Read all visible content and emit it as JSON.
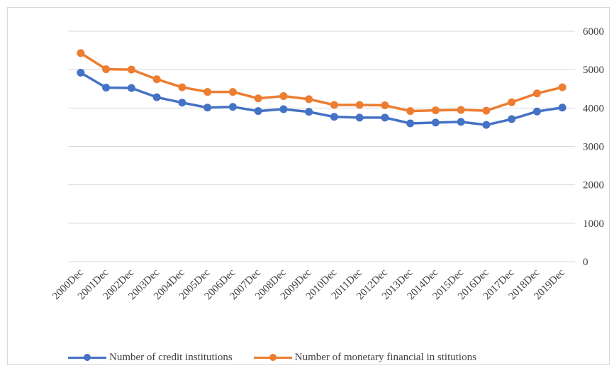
{
  "chart_data": {
    "type": "line",
    "title": "",
    "xlabel": "",
    "ylabel": "",
    "categories": [
      "2000Dec",
      "2001Dec",
      "2002Dec",
      "2003Dec",
      "2004Dec",
      "2005Dec",
      "2006Dec",
      "2007Dec",
      "2008Dec",
      "2009Dec",
      "2010Dec",
      "2011Dec",
      "2012Dec",
      "2013Dec",
      "2014Dec",
      "2015Dec",
      "2016Dec",
      "2017Dec",
      "2018Dec",
      "2019Dec"
    ],
    "y_tick_labels": [
      "0",
      "1000",
      "2000",
      "3000",
      "4000",
      "5000",
      "6000"
    ],
    "ylim": [
      0,
      6000
    ],
    "grid": true,
    "legend_position": "bottom",
    "series": [
      {
        "name": "Number of credit institutions",
        "color": "#4472c4",
        "values": [
          4920,
          4530,
          4520,
          4280,
          4140,
          4010,
          4030,
          3920,
          3970,
          3900,
          3770,
          3750,
          3750,
          3600,
          3620,
          3640,
          3560,
          3710,
          3910,
          4010
        ]
      },
      {
        "name": "Number of  monetary financial in stitutions",
        "color": "#ed7d31",
        "values": [
          5430,
          5010,
          5000,
          4750,
          4540,
          4420,
          4420,
          4250,
          4310,
          4230,
          4080,
          4080,
          4070,
          3920,
          3940,
          3950,
          3930,
          4150,
          4380,
          4540
        ]
      }
    ]
  }
}
